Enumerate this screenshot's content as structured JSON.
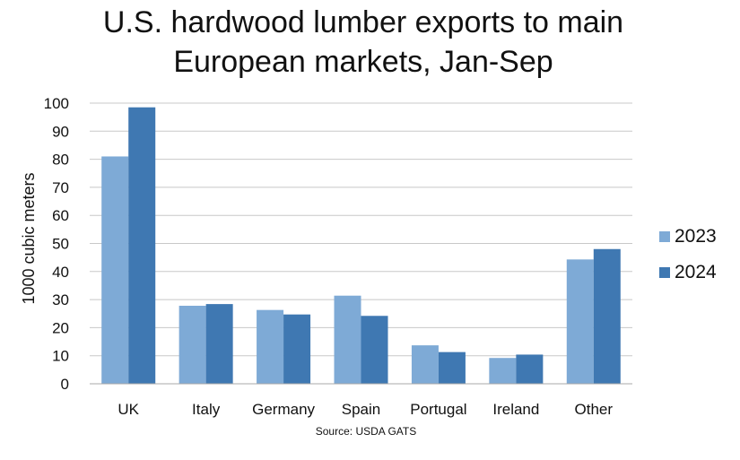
{
  "chart_data": {
    "type": "bar",
    "title_lines": [
      "U.S. hardwood lumber exports to main",
      "European markets, Jan-Sep"
    ],
    "ylabel": "1000 cubic meters",
    "xlabel": "",
    "ylim": [
      0,
      100
    ],
    "yticks": [
      0,
      10,
      20,
      30,
      40,
      50,
      60,
      70,
      80,
      90,
      100
    ],
    "categories": [
      "UK",
      "Italy",
      "Germany",
      "Spain",
      "Portugal",
      "Ireland",
      "Other"
    ],
    "series": [
      {
        "name": "2023",
        "color": "#7eaad6",
        "values": [
          81,
          27.8,
          26.3,
          31.4,
          13.7,
          9.2,
          44.3
        ]
      },
      {
        "name": "2024",
        "color": "#3f78b2",
        "values": [
          98.5,
          28.4,
          24.7,
          24.2,
          11.3,
          10.4,
          48
        ]
      }
    ],
    "grid": true,
    "legend_position": "right",
    "source": "Source: USDA GATS"
  }
}
